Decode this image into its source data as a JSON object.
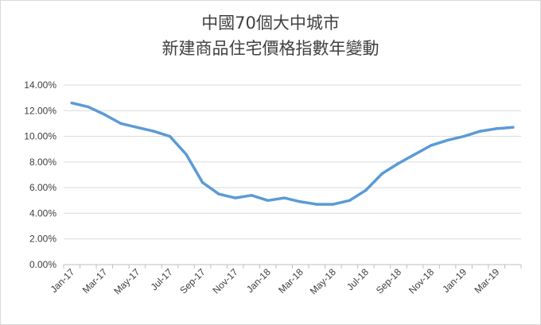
{
  "chart_data": {
    "type": "line",
    "title": [
      "中國70個大中城市",
      "新建商品住宅價格指數年變動"
    ],
    "x": [
      "Jan-17",
      "Feb-17",
      "Mar-17",
      "Apr-17",
      "May-17",
      "Jun-17",
      "Jul-17",
      "Aug-17",
      "Sep-17",
      "Oct-17",
      "Nov-17",
      "Dec-17",
      "Jan-18",
      "Feb-18",
      "Mar-18",
      "Apr-18",
      "May-18",
      "Jun-18",
      "Jul-18",
      "Aug-18",
      "Sep-18",
      "Oct-18",
      "Nov-18",
      "Dec-18",
      "Jan-19",
      "Feb-19",
      "Mar-19",
      "Apr-19"
    ],
    "x_tick_labels": [
      "Jan-17",
      "Mar-17",
      "May-17",
      "Jul-17",
      "Sep-17",
      "Nov-17",
      "Jan-18",
      "Mar-18",
      "May-18",
      "Jul-18",
      "Sep-18",
      "Nov-18",
      "Jan-19",
      "Mar-19"
    ],
    "series": [
      {
        "values": [
          12.6,
          12.3,
          11.7,
          11.0,
          10.7,
          10.4,
          10.0,
          8.6,
          6.4,
          5.5,
          5.2,
          5.4,
          5.0,
          5.2,
          4.9,
          4.7,
          4.7,
          5.0,
          5.8,
          7.1,
          7.9,
          8.6,
          9.3,
          9.7,
          10.0,
          10.4,
          10.6,
          10.7
        ]
      }
    ],
    "y_tick_labels": [
      "0.00%",
      "2.00%",
      "4.00%",
      "6.00%",
      "8.00%",
      "10.00%",
      "12.00%",
      "14.00%"
    ],
    "ylim": [
      0,
      14
    ],
    "grid": true,
    "line_color": "#5b9bd5",
    "grid_color": "#d9d9d9"
  }
}
